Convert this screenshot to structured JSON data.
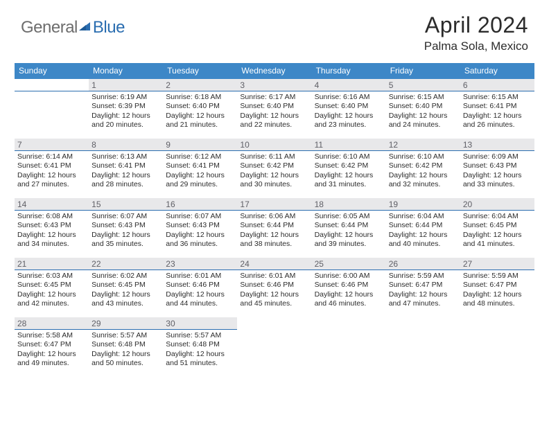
{
  "logo": {
    "text1": "General",
    "text2": "Blue"
  },
  "title": "April 2024",
  "location": "Palma Sola, Mexico",
  "colors": {
    "header_bar": "#3d87c7",
    "day_rule": "#2a6db0",
    "daynum_bg": "#e8e8ea",
    "text": "#2b2b2b",
    "logo_gray": "#6d6d6d",
    "logo_blue": "#2a6db0"
  },
  "weekdays": [
    "Sunday",
    "Monday",
    "Tuesday",
    "Wednesday",
    "Thursday",
    "Friday",
    "Saturday"
  ],
  "weeks": [
    [
      {
        "n": "",
        "lines": []
      },
      {
        "n": "1",
        "lines": [
          "Sunrise: 6:19 AM",
          "Sunset: 6:39 PM",
          "Daylight: 12 hours",
          "and 20 minutes."
        ]
      },
      {
        "n": "2",
        "lines": [
          "Sunrise: 6:18 AM",
          "Sunset: 6:40 PM",
          "Daylight: 12 hours",
          "and 21 minutes."
        ]
      },
      {
        "n": "3",
        "lines": [
          "Sunrise: 6:17 AM",
          "Sunset: 6:40 PM",
          "Daylight: 12 hours",
          "and 22 minutes."
        ]
      },
      {
        "n": "4",
        "lines": [
          "Sunrise: 6:16 AM",
          "Sunset: 6:40 PM",
          "Daylight: 12 hours",
          "and 23 minutes."
        ]
      },
      {
        "n": "5",
        "lines": [
          "Sunrise: 6:15 AM",
          "Sunset: 6:40 PM",
          "Daylight: 12 hours",
          "and 24 minutes."
        ]
      },
      {
        "n": "6",
        "lines": [
          "Sunrise: 6:15 AM",
          "Sunset: 6:41 PM",
          "Daylight: 12 hours",
          "and 26 minutes."
        ]
      }
    ],
    [
      {
        "n": "7",
        "lines": [
          "Sunrise: 6:14 AM",
          "Sunset: 6:41 PM",
          "Daylight: 12 hours",
          "and 27 minutes."
        ]
      },
      {
        "n": "8",
        "lines": [
          "Sunrise: 6:13 AM",
          "Sunset: 6:41 PM",
          "Daylight: 12 hours",
          "and 28 minutes."
        ]
      },
      {
        "n": "9",
        "lines": [
          "Sunrise: 6:12 AM",
          "Sunset: 6:41 PM",
          "Daylight: 12 hours",
          "and 29 minutes."
        ]
      },
      {
        "n": "10",
        "lines": [
          "Sunrise: 6:11 AM",
          "Sunset: 6:42 PM",
          "Daylight: 12 hours",
          "and 30 minutes."
        ]
      },
      {
        "n": "11",
        "lines": [
          "Sunrise: 6:10 AM",
          "Sunset: 6:42 PM",
          "Daylight: 12 hours",
          "and 31 minutes."
        ]
      },
      {
        "n": "12",
        "lines": [
          "Sunrise: 6:10 AM",
          "Sunset: 6:42 PM",
          "Daylight: 12 hours",
          "and 32 minutes."
        ]
      },
      {
        "n": "13",
        "lines": [
          "Sunrise: 6:09 AM",
          "Sunset: 6:43 PM",
          "Daylight: 12 hours",
          "and 33 minutes."
        ]
      }
    ],
    [
      {
        "n": "14",
        "lines": [
          "Sunrise: 6:08 AM",
          "Sunset: 6:43 PM",
          "Daylight: 12 hours",
          "and 34 minutes."
        ]
      },
      {
        "n": "15",
        "lines": [
          "Sunrise: 6:07 AM",
          "Sunset: 6:43 PM",
          "Daylight: 12 hours",
          "and 35 minutes."
        ]
      },
      {
        "n": "16",
        "lines": [
          "Sunrise: 6:07 AM",
          "Sunset: 6:43 PM",
          "Daylight: 12 hours",
          "and 36 minutes."
        ]
      },
      {
        "n": "17",
        "lines": [
          "Sunrise: 6:06 AM",
          "Sunset: 6:44 PM",
          "Daylight: 12 hours",
          "and 38 minutes."
        ]
      },
      {
        "n": "18",
        "lines": [
          "Sunrise: 6:05 AM",
          "Sunset: 6:44 PM",
          "Daylight: 12 hours",
          "and 39 minutes."
        ]
      },
      {
        "n": "19",
        "lines": [
          "Sunrise: 6:04 AM",
          "Sunset: 6:44 PM",
          "Daylight: 12 hours",
          "and 40 minutes."
        ]
      },
      {
        "n": "20",
        "lines": [
          "Sunrise: 6:04 AM",
          "Sunset: 6:45 PM",
          "Daylight: 12 hours",
          "and 41 minutes."
        ]
      }
    ],
    [
      {
        "n": "21",
        "lines": [
          "Sunrise: 6:03 AM",
          "Sunset: 6:45 PM",
          "Daylight: 12 hours",
          "and 42 minutes."
        ]
      },
      {
        "n": "22",
        "lines": [
          "Sunrise: 6:02 AM",
          "Sunset: 6:45 PM",
          "Daylight: 12 hours",
          "and 43 minutes."
        ]
      },
      {
        "n": "23",
        "lines": [
          "Sunrise: 6:01 AM",
          "Sunset: 6:46 PM",
          "Daylight: 12 hours",
          "and 44 minutes."
        ]
      },
      {
        "n": "24",
        "lines": [
          "Sunrise: 6:01 AM",
          "Sunset: 6:46 PM",
          "Daylight: 12 hours",
          "and 45 minutes."
        ]
      },
      {
        "n": "25",
        "lines": [
          "Sunrise: 6:00 AM",
          "Sunset: 6:46 PM",
          "Daylight: 12 hours",
          "and 46 minutes."
        ]
      },
      {
        "n": "26",
        "lines": [
          "Sunrise: 5:59 AM",
          "Sunset: 6:47 PM",
          "Daylight: 12 hours",
          "and 47 minutes."
        ]
      },
      {
        "n": "27",
        "lines": [
          "Sunrise: 5:59 AM",
          "Sunset: 6:47 PM",
          "Daylight: 12 hours",
          "and 48 minutes."
        ]
      }
    ],
    [
      {
        "n": "28",
        "lines": [
          "Sunrise: 5:58 AM",
          "Sunset: 6:47 PM",
          "Daylight: 12 hours",
          "and 49 minutes."
        ]
      },
      {
        "n": "29",
        "lines": [
          "Sunrise: 5:57 AM",
          "Sunset: 6:48 PM",
          "Daylight: 12 hours",
          "and 50 minutes."
        ]
      },
      {
        "n": "30",
        "lines": [
          "Sunrise: 5:57 AM",
          "Sunset: 6:48 PM",
          "Daylight: 12 hours",
          "and 51 minutes."
        ]
      },
      {
        "n": "",
        "lines": []
      },
      {
        "n": "",
        "lines": []
      },
      {
        "n": "",
        "lines": []
      },
      {
        "n": "",
        "lines": []
      }
    ]
  ]
}
